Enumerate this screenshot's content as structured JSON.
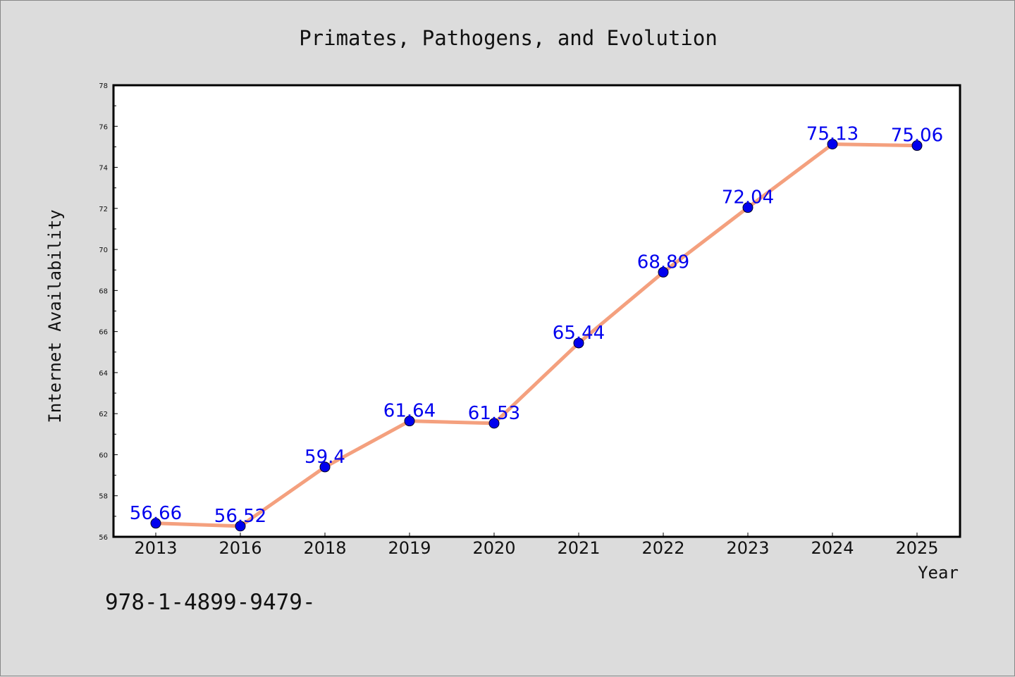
{
  "chart_data": {
    "type": "line",
    "title": "Primates, Pathogens, and Evolution",
    "xlabel": "Year",
    "ylabel": "Internet Availability",
    "categories": [
      "2013",
      "2016",
      "2018",
      "2019",
      "2020",
      "2021",
      "2022",
      "2023",
      "2024",
      "2025"
    ],
    "series": [
      {
        "values": [
          56.66,
          56.52,
          59.4,
          61.64,
          61.53,
          65.44,
          68.89,
          72.04,
          75.13,
          75.06
        ]
      }
    ],
    "data_labels": [
      "56.66",
      "56.52",
      "59.4",
      "61.64",
      "61.53",
      "65.44",
      "68.89",
      "72.04",
      "75.13",
      "75.06"
    ],
    "ylim": [
      56,
      78
    ],
    "yticks": [
      56,
      58,
      60,
      62,
      64,
      66,
      68,
      70,
      72,
      74,
      76,
      78
    ],
    "grid": false,
    "legend": "none",
    "colors": {
      "line": "#f4a07e",
      "marker": "#0000ee",
      "label": "#0000ee",
      "background": "#dcdcdc",
      "plot_background": "#ffffff"
    }
  },
  "footnote": "978-1-4899-9479-"
}
